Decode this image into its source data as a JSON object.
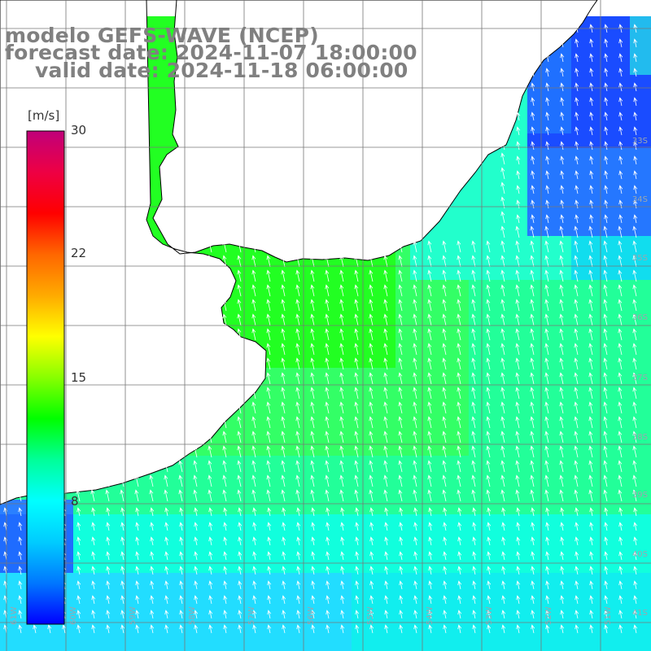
{
  "title": {
    "line1": "modelo GEFS-WAVE (NCEP)",
    "line2": "forecast date: 2024-11-07 18:00:00",
    "line3": "valid date: 2024-11-18 06:00:00"
  },
  "colorbar": {
    "unit": "[m/s]",
    "ticks": [
      "30",
      "22",
      "15",
      "8"
    ],
    "colors": [
      "#0000ff",
      "#0077ff",
      "#00ccff",
      "#00ffff",
      "#00ff99",
      "#00ff00",
      "#88ff00",
      "#ffff00",
      "#ffaa00",
      "#ff6600",
      "#ff0000",
      "#ee0044",
      "#c0007a"
    ]
  },
  "lat_labels": [
    "33S",
    "34S",
    "35S",
    "36S",
    "37S",
    "38S",
    "39S",
    "40S",
    "41S"
  ],
  "lon_labels": [
    "61W",
    "60W",
    "59W",
    "58W",
    "57W",
    "56W",
    "55W",
    "54W",
    "53W",
    "52W",
    "51W"
  ],
  "colors": {
    "land": "#ffffff",
    "coast": "#000000",
    "grid": "#777777",
    "title": "#808080",
    "arrow": "#ffffff"
  }
}
